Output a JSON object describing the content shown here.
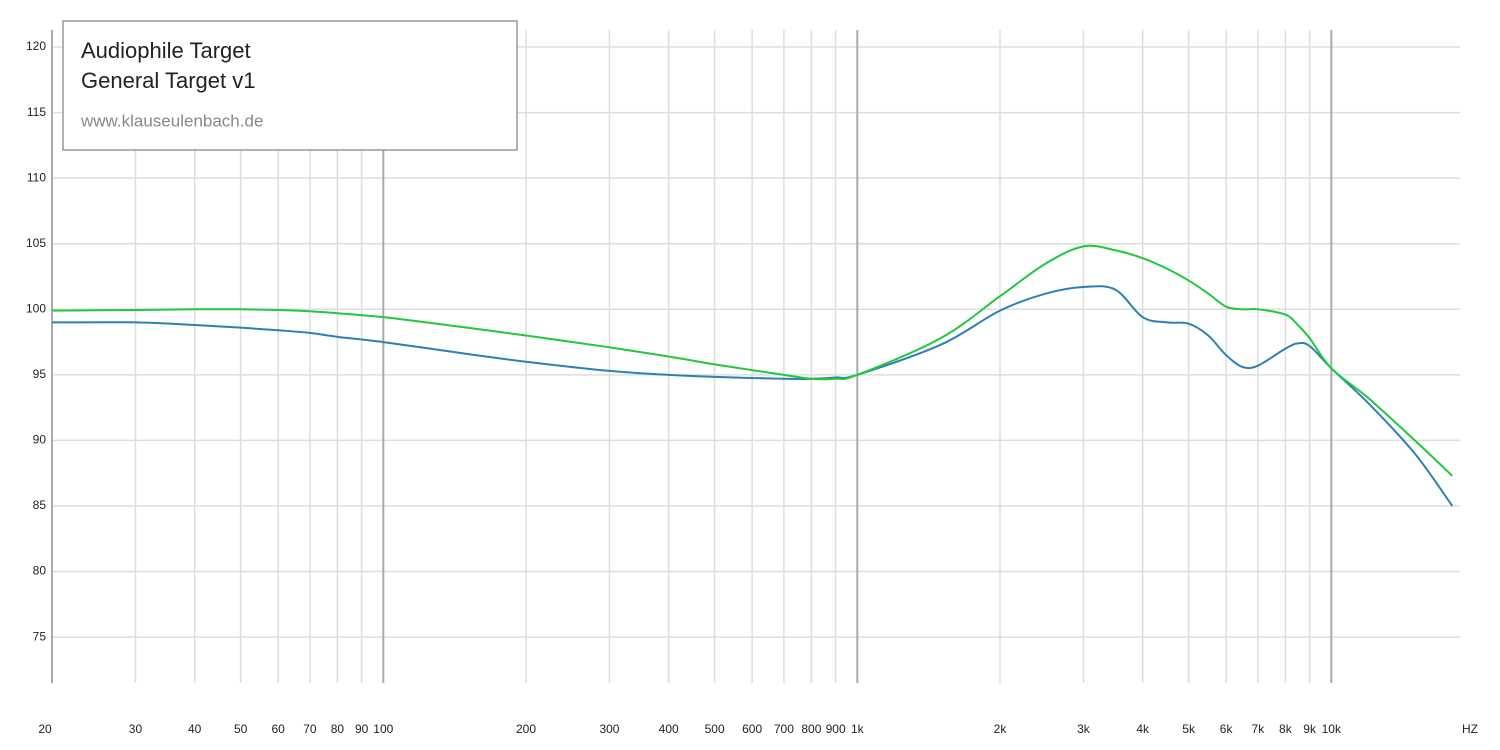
{
  "chart_data": {
    "type": "line",
    "x_scale": "log",
    "grid": true,
    "legend_position": "upper left",
    "subtitle": "www.klauseulenbach.de",
    "xlabel": "HZ",
    "x": [
      20,
      30,
      40,
      50,
      60,
      70,
      80,
      100,
      150,
      200,
      300,
      400,
      500,
      700,
      800,
      900,
      1000,
      1500,
      2000,
      2500,
      3000,
      3500,
      4000,
      4500,
      5000,
      5500,
      6000,
      6500,
      7000,
      8000,
      8500,
      9000,
      10000,
      12000,
      15000,
      18000
    ],
    "series": [
      {
        "name": "Audiophile Target",
        "color": "#2d80b2",
        "values": [
          99.0,
          99.0,
          98.8,
          98.6,
          98.4,
          98.2,
          97.9,
          97.5,
          96.6,
          96.0,
          95.3,
          95.0,
          94.85,
          94.7,
          94.7,
          94.8,
          95.0,
          97.3,
          99.9,
          101.2,
          101.7,
          101.5,
          99.4,
          99.0,
          98.9,
          98.0,
          96.5,
          95.6,
          95.7,
          97.0,
          97.4,
          97.2,
          95.5,
          92.8,
          89.0,
          85.0
        ]
      },
      {
        "name": "General Target v1",
        "color": "#20c83c",
        "values": [
          99.9,
          99.95,
          100.0,
          100.0,
          99.95,
          99.85,
          99.7,
          99.4,
          98.6,
          98.0,
          97.1,
          96.4,
          95.8,
          95.0,
          94.7,
          94.7,
          95.0,
          97.8,
          101.0,
          103.5,
          104.8,
          104.5,
          103.9,
          103.1,
          102.2,
          101.2,
          100.2,
          100.0,
          100.0,
          99.6,
          98.8,
          97.8,
          95.5,
          93.2,
          90.0,
          87.3
        ]
      }
    ],
    "xlim": [
      20,
      20000
    ],
    "ylim": [
      71.5,
      121.3
    ],
    "yticks": [
      75,
      80,
      85,
      90,
      95,
      100,
      105,
      110,
      115,
      120
    ],
    "xticks": [
      20,
      30,
      40,
      50,
      60,
      70,
      80,
      90,
      100,
      200,
      300,
      400,
      500,
      600,
      700,
      800,
      900,
      {
        "value": 1000,
        "label": "1k"
      },
      {
        "value": 2000,
        "label": "2k"
      },
      {
        "value": 3000,
        "label": "3k"
      },
      {
        "value": 4000,
        "label": "4k"
      },
      {
        "value": 5000,
        "label": "5k"
      },
      {
        "value": 6000,
        "label": "6k"
      },
      {
        "value": 7000,
        "label": "7k"
      },
      {
        "value": 8000,
        "label": "8k"
      },
      {
        "value": 9000,
        "label": "9k"
      },
      {
        "value": 10000,
        "label": "10k"
      }
    ]
  }
}
